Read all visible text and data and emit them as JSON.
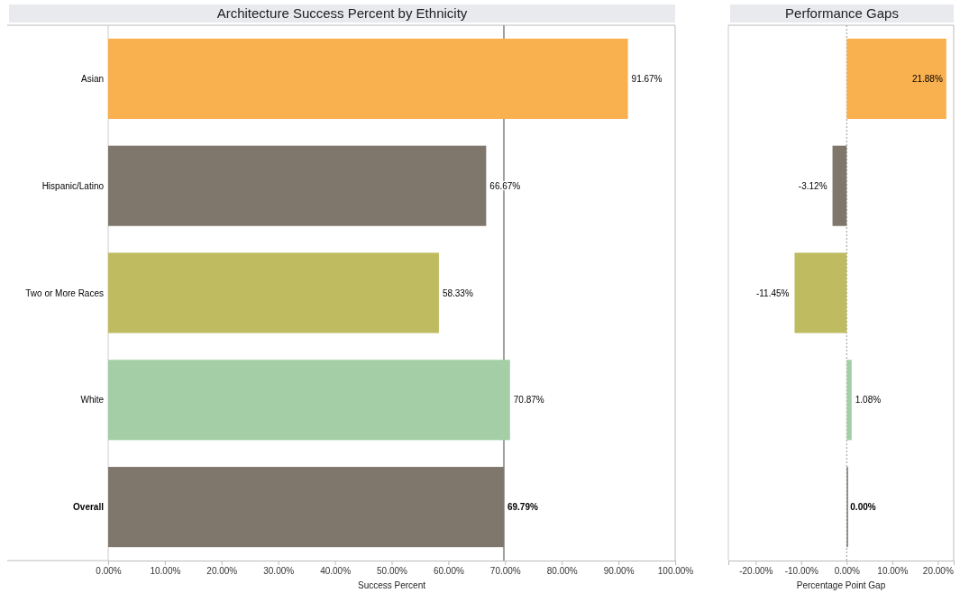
{
  "chart_data": [
    {
      "type": "bar",
      "orientation": "horizontal",
      "title": "Architecture Success Percent by Ethnicity",
      "xlabel": "Success Percent",
      "categories": [
        "Asian",
        "Hispanic/Latino",
        "Two or More Races",
        "White",
        "Overall"
      ],
      "values": [
        91.67,
        66.67,
        58.33,
        70.87,
        69.79
      ],
      "colors": [
        "#f9b04e",
        "#7f776c",
        "#bfbb60",
        "#a3cea6",
        "#7f776c"
      ],
      "value_labels": [
        "91.67%",
        "66.67%",
        "58.33%",
        "70.87%",
        "69.79%"
      ],
      "xlim": [
        0,
        100
      ],
      "xticks": [
        {
          "value": 0,
          "label": "0.00%"
        },
        {
          "value": 10,
          "label": "10.00%"
        },
        {
          "value": 20,
          "label": "20.00%"
        },
        {
          "value": 30,
          "label": "30.00%"
        },
        {
          "value": 40,
          "label": "40.00%"
        },
        {
          "value": 50,
          "label": "50.00%"
        },
        {
          "value": 60,
          "label": "60.00%"
        },
        {
          "value": 70,
          "label": "70.00%"
        },
        {
          "value": 80,
          "label": "80.00%"
        },
        {
          "value": 90,
          "label": "90.00%"
        },
        {
          "value": 100,
          "label": "100.00%"
        }
      ],
      "ref_lines": [
        {
          "axis": "x",
          "value": 69.79,
          "color": "#a0a0a0",
          "line_style": "solid"
        }
      ],
      "grid": false
    },
    {
      "type": "bar",
      "orientation": "horizontal",
      "title": "Performance Gaps",
      "xlabel": "Percentage Point Gap",
      "categories": [
        null,
        null,
        null,
        null,
        null
      ],
      "values": [
        21.88,
        -3.12,
        -11.45,
        1.08,
        0
      ],
      "colors": [
        "#f9b04e",
        "#7f776c",
        "#bfbb60",
        "#a3cea6",
        "#7f776c"
      ],
      "value_labels": [
        "21.88%",
        "-3.12%",
        "-11.45%",
        "1.08%",
        "0.00%"
      ],
      "xlim": [
        -26,
        23.5
      ],
      "xticks": [
        {
          "value": -20,
          "label": "-20.00%"
        },
        {
          "value": -10,
          "label": "-10.00%"
        },
        {
          "value": 0,
          "label": "0.00%"
        },
        {
          "value": 10,
          "label": "10.00%"
        },
        {
          "value": 20,
          "label": "20.00%"
        }
      ],
      "ref_lines": [
        {
          "axis": "x",
          "value": 0,
          "color": "#999999",
          "line_style": "dotted"
        }
      ],
      "tick_labels": "x",
      "grid": false
    }
  ]
}
